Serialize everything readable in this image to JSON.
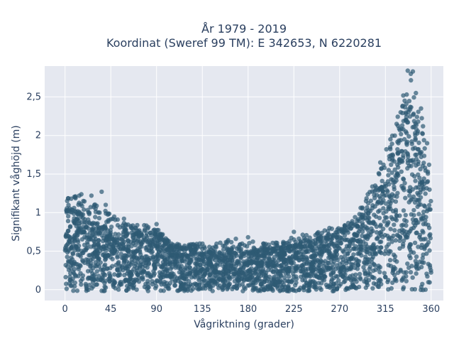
{
  "chart_data": {
    "type": "scatter",
    "title_line1": "År 1979 - 2019",
    "title_line2": "Koordinat (Sweref 99 TM): E 342653, N 6220281",
    "xlabel": "Vågriktning (grader)",
    "ylabel": "Signifikant våghöjd (m)",
    "xlim": [
      -20,
      372
    ],
    "ylim": [
      -0.14,
      2.9
    ],
    "x_ticks": [
      0,
      45,
      90,
      135,
      180,
      225,
      270,
      315,
      360
    ],
    "x_tick_labels": [
      "0",
      "45",
      "90",
      "135",
      "180",
      "225",
      "270",
      "315",
      "360"
    ],
    "y_ticks": [
      0,
      0.5,
      1,
      1.5,
      2,
      2.5
    ],
    "y_tick_labels": [
      "0",
      "0,5",
      "1",
      "1,5",
      "2",
      "2,5"
    ],
    "grid": true,
    "marker_color": "#2e5a74",
    "background_color": "#e5e8f0",
    "envelope_direction": [
      0,
      10,
      20,
      30,
      40,
      50,
      60,
      70,
      80,
      90,
      100,
      110,
      120,
      130,
      140,
      150,
      160,
      170,
      180,
      190,
      200,
      210,
      220,
      230,
      240,
      250,
      260,
      270,
      280,
      290,
      300,
      310,
      315,
      320,
      325,
      330,
      335,
      340,
      345,
      350,
      355,
      360
    ],
    "envelope_dense_max": [
      1.0,
      1.0,
      0.92,
      0.85,
      0.78,
      0.72,
      0.7,
      0.72,
      0.74,
      0.72,
      0.6,
      0.55,
      0.5,
      0.5,
      0.48,
      0.48,
      0.5,
      0.5,
      0.48,
      0.5,
      0.52,
      0.52,
      0.55,
      0.58,
      0.62,
      0.65,
      0.68,
      0.72,
      0.78,
      0.9,
      1.05,
      1.3,
      1.45,
      1.6,
      1.8,
      2.0,
      2.15,
      2.2,
      2.1,
      1.8,
      1.5,
      1.2
    ],
    "envelope_sparse_max": [
      1.2,
      1.22,
      1.25,
      1.12,
      1.05,
      0.95,
      0.85,
      0.85,
      0.85,
      0.82,
      0.65,
      0.6,
      0.58,
      0.6,
      0.62,
      0.6,
      0.66,
      0.58,
      0.68,
      0.6,
      0.6,
      0.62,
      0.66,
      0.75,
      0.72,
      0.75,
      0.8,
      0.8,
      0.88,
      1.05,
      1.3,
      1.55,
      1.75,
      1.95,
      2.25,
      2.45,
      2.6,
      2.85,
      2.55,
      2.3,
      1.9,
      1.5
    ],
    "highlighted_points": [
      {
        "x": 6,
        "y": 1.18
      },
      {
        "x": 10,
        "y": 1.2
      },
      {
        "x": 14,
        "y": 1.22
      },
      {
        "x": 18,
        "y": 1.15
      },
      {
        "x": 26,
        "y": 1.22
      },
      {
        "x": 30,
        "y": 1.05
      },
      {
        "x": 34,
        "y": 1.0
      },
      {
        "x": 36,
        "y": 1.27
      },
      {
        "x": 40,
        "y": 1.1
      },
      {
        "x": 58,
        "y": 0.92
      },
      {
        "x": 90,
        "y": 0.85
      },
      {
        "x": 168,
        "y": 0.66
      },
      {
        "x": 180,
        "y": 0.68
      },
      {
        "x": 225,
        "y": 0.75
      },
      {
        "x": 260,
        "y": 0.8
      },
      {
        "x": 296,
        "y": 1.15
      },
      {
        "x": 305,
        "y": 1.35
      },
      {
        "x": 310,
        "y": 1.65
      },
      {
        "x": 316,
        "y": 1.82
      },
      {
        "x": 320,
        "y": 1.95
      },
      {
        "x": 326,
        "y": 2.15
      },
      {
        "x": 330,
        "y": 2.3
      },
      {
        "x": 334,
        "y": 2.45
      },
      {
        "x": 337,
        "y": 2.84
      },
      {
        "x": 340,
        "y": 2.8
      },
      {
        "x": 342,
        "y": 2.83
      },
      {
        "x": 345,
        "y": 2.55
      },
      {
        "x": 350,
        "y": 2.35
      },
      {
        "x": 356,
        "y": 1.9
      },
      {
        "x": 358,
        "y": 1.62
      },
      {
        "x": 352,
        "y": 2.12
      },
      {
        "x": 322,
        "y": 1.7
      }
    ]
  }
}
